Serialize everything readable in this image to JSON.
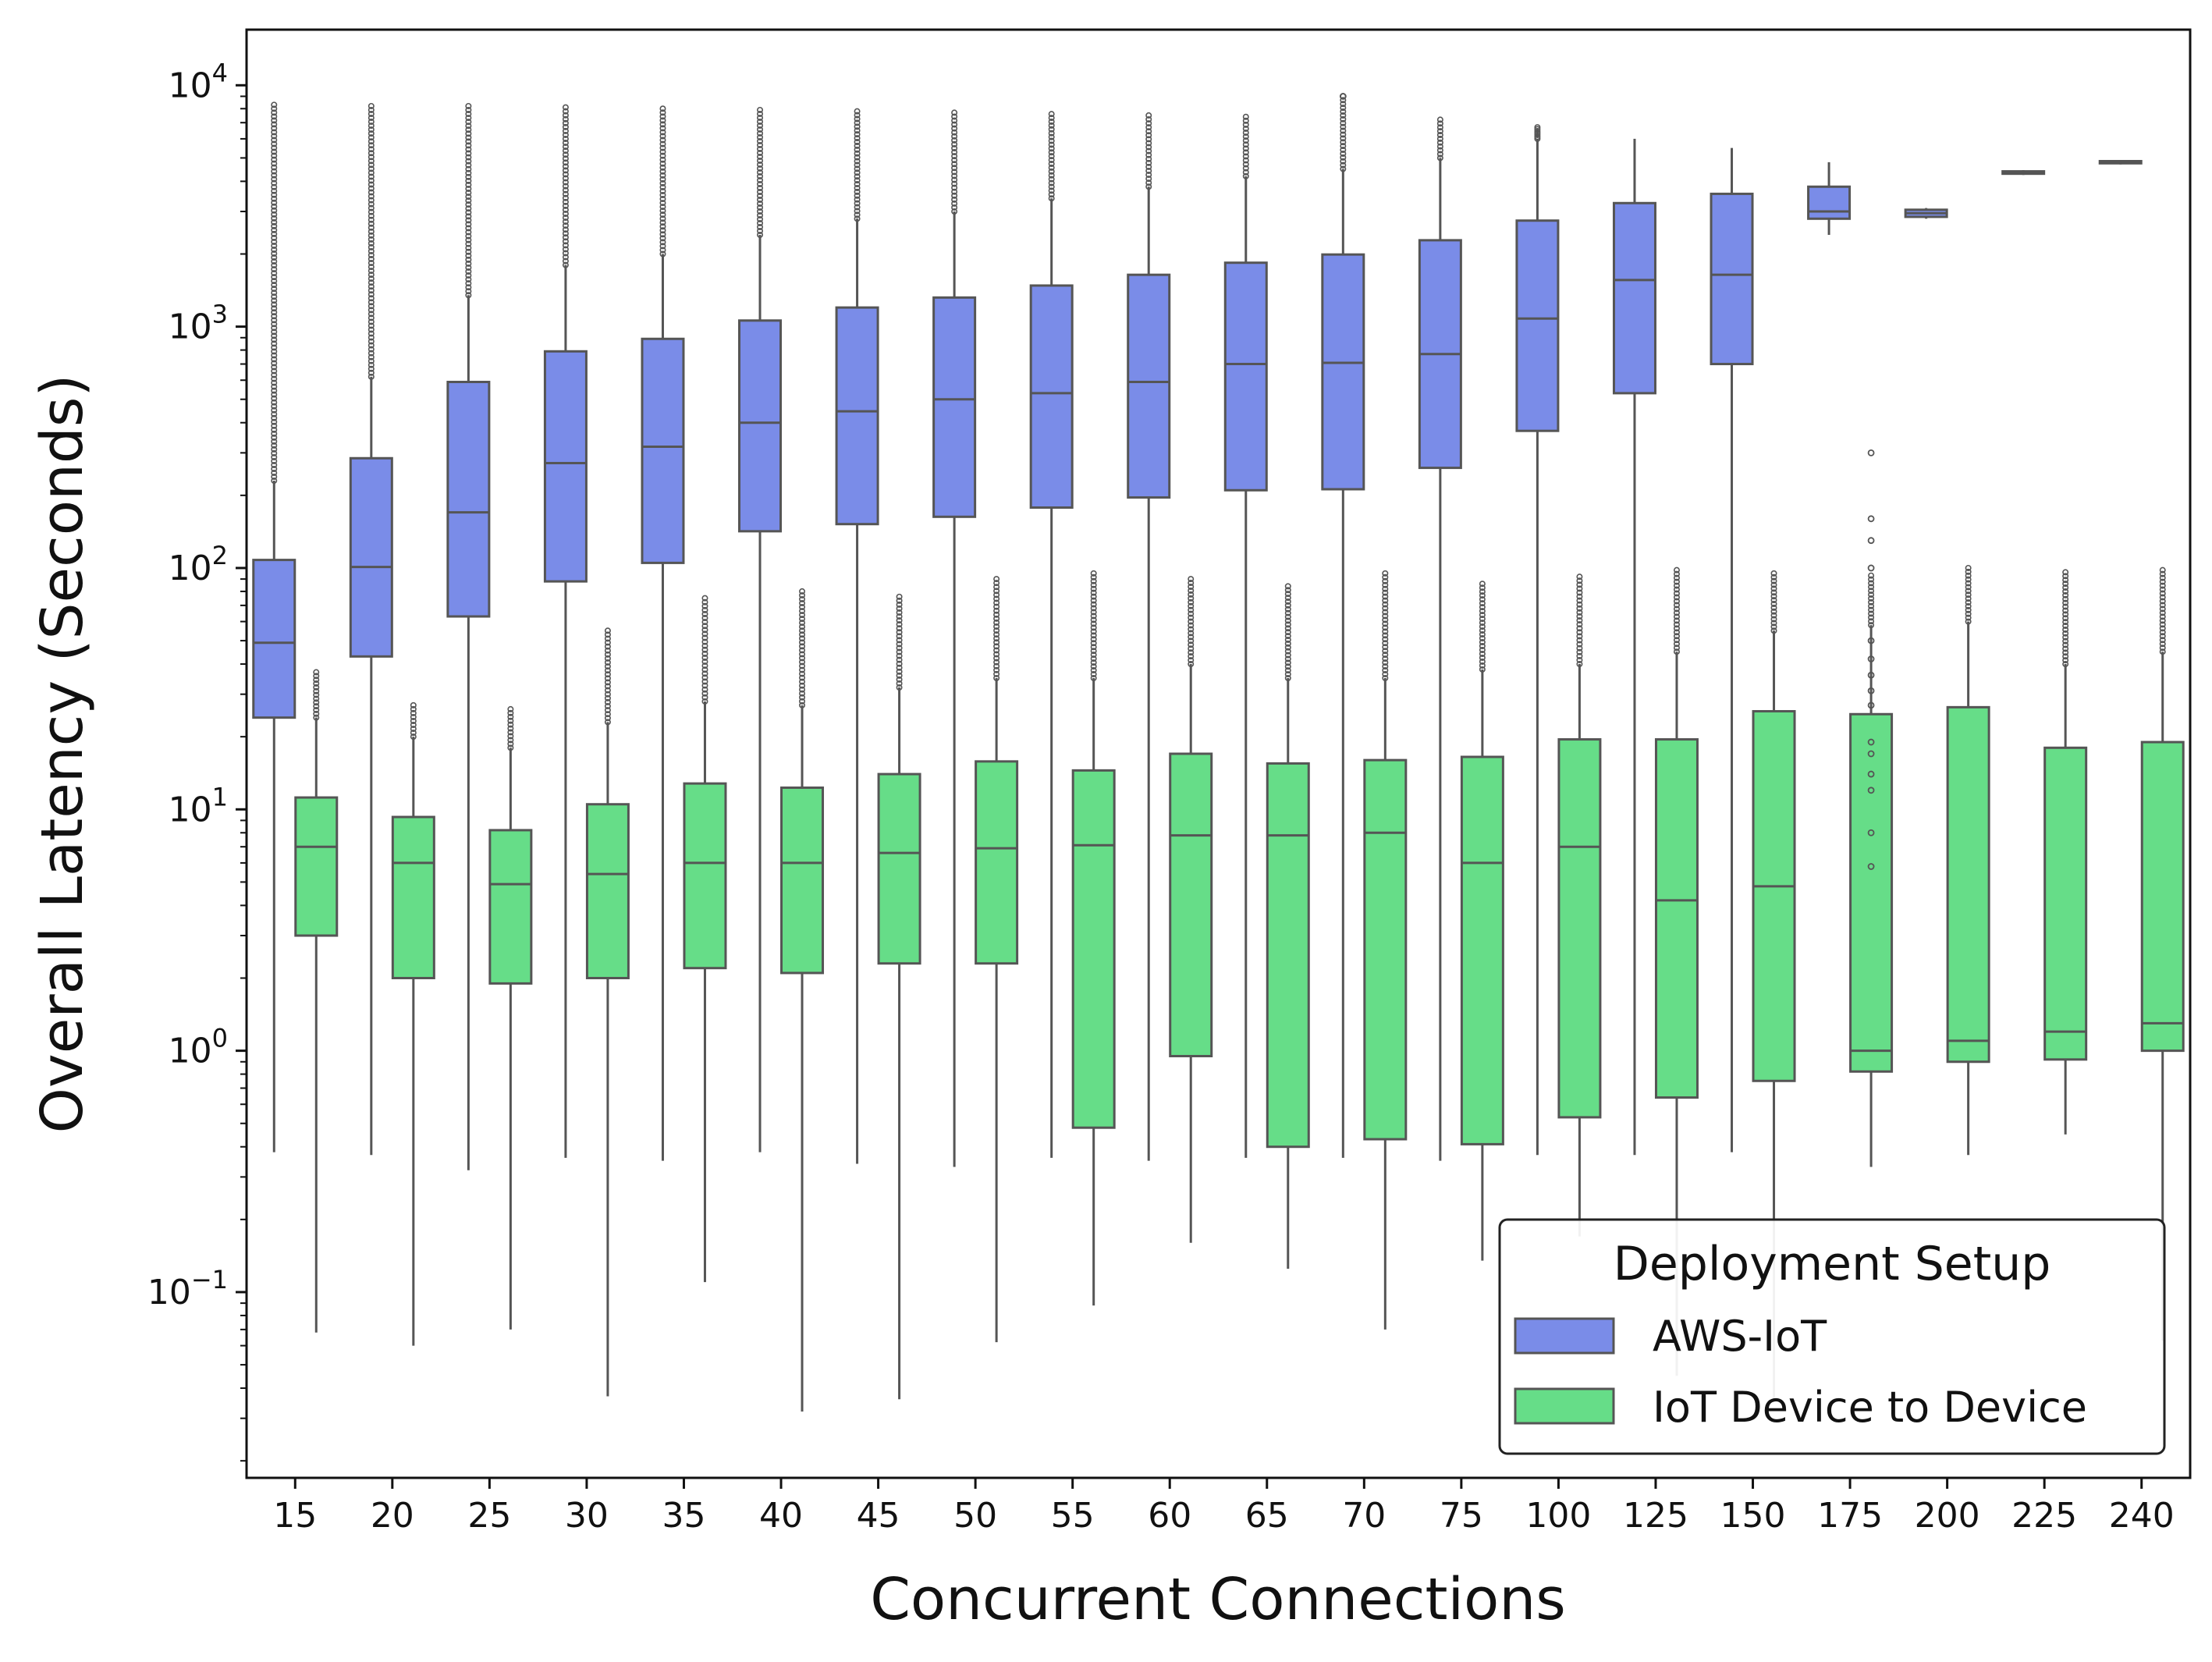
{
  "chart_data": {
    "type": "box",
    "xlabel": "Concurrent Connections",
    "ylabel": "Overall Latency (Seconds)",
    "yscale": "log",
    "ylim": [
      0.017,
      17000
    ],
    "ytick_base": "10",
    "ytick_exponents": [
      "−1",
      "0",
      "1",
      "2",
      "3",
      "4"
    ],
    "ytick_values": [
      0.1,
      1,
      10,
      100,
      1000,
      10000
    ],
    "categories": [
      "15",
      "20",
      "25",
      "30",
      "35",
      "40",
      "45",
      "50",
      "55",
      "60",
      "65",
      "70",
      "75",
      "100",
      "125",
      "150",
      "175",
      "200",
      "225",
      "240"
    ],
    "legend": {
      "title": "Deployment Setup",
      "placement": "lower right"
    },
    "series": [
      {
        "name": "AWS-IoT",
        "color": "#7a8ce8",
        "boxes": [
          {
            "whislo": 0.38,
            "q1": 24,
            "med": 49,
            "q3": 108,
            "whishi": 230,
            "flier_min": 230,
            "flier_max": 8300
          },
          {
            "whislo": 0.37,
            "q1": 43,
            "med": 101,
            "q3": 285,
            "whishi": 620,
            "flier_min": 620,
            "flier_max": 8200
          },
          {
            "whislo": 0.32,
            "q1": 63,
            "med": 170,
            "q3": 590,
            "whishi": 1350,
            "flier_min": 1350,
            "flier_max": 8200
          },
          {
            "whislo": 0.36,
            "q1": 88,
            "med": 272,
            "q3": 790,
            "whishi": 1800,
            "flier_min": 1800,
            "flier_max": 8100
          },
          {
            "whislo": 0.35,
            "q1": 105,
            "med": 318,
            "q3": 890,
            "whishi": 2000,
            "flier_min": 2000,
            "flier_max": 8000
          },
          {
            "whislo": 0.38,
            "q1": 142,
            "med": 400,
            "q3": 1060,
            "whishi": 2400,
            "flier_min": 2400,
            "flier_max": 7900
          },
          {
            "whislo": 0.34,
            "q1": 152,
            "med": 446,
            "q3": 1200,
            "whishi": 2800,
            "flier_min": 2800,
            "flier_max": 7800
          },
          {
            "whislo": 0.33,
            "q1": 163,
            "med": 500,
            "q3": 1320,
            "whishi": 3000,
            "flier_min": 3000,
            "flier_max": 7700
          },
          {
            "whislo": 0.36,
            "q1": 178,
            "med": 530,
            "q3": 1480,
            "whishi": 3400,
            "flier_min": 3400,
            "flier_max": 7600
          },
          {
            "whislo": 0.35,
            "q1": 196,
            "med": 590,
            "q3": 1640,
            "whishi": 3800,
            "flier_min": 3800,
            "flier_max": 7500
          },
          {
            "whislo": 0.36,
            "q1": 210,
            "med": 700,
            "q3": 1840,
            "whishi": 4200,
            "flier_min": 4200,
            "flier_max": 7400
          },
          {
            "whislo": 0.36,
            "q1": 212,
            "med": 708,
            "q3": 1990,
            "whishi": 4500,
            "flier_min": 4500,
            "flier_max": 9000
          },
          {
            "whislo": 0.35,
            "q1": 260,
            "med": 770,
            "q3": 2280,
            "whishi": 5000,
            "flier_min": 5000,
            "flier_max": 7200
          },
          {
            "whislo": 0.37,
            "q1": 370,
            "med": 1080,
            "q3": 2750,
            "whishi": 6000,
            "flier_min": 6000,
            "flier_max": 6700
          },
          {
            "whislo": 0.37,
            "q1": 530,
            "med": 1560,
            "q3": 3250,
            "whishi": 6000
          },
          {
            "whislo": 0.38,
            "q1": 700,
            "med": 1640,
            "q3": 3550,
            "whishi": 5500
          },
          {
            "whislo": 2400,
            "q1": 2800,
            "med": 3000,
            "q3": 3800,
            "whishi": 4800
          },
          {
            "whislo": 2800,
            "q1": 2850,
            "med": 2950,
            "q3": 3050,
            "whishi": 3100
          },
          {
            "whislo": 4250,
            "q1": 4300,
            "med": 4350,
            "q3": 4400,
            "whishi": 4450
          },
          {
            "whislo": 4700,
            "q1": 4750,
            "med": 4800,
            "q3": 4850,
            "whishi": 4900
          }
        ]
      },
      {
        "name": "IoT Device to Device",
        "color": "#66dd88",
        "boxes": [
          {
            "whislo": 0.068,
            "q1": 3.0,
            "med": 7.0,
            "q3": 11.2,
            "whishi": 24,
            "flier_min": 24,
            "flier_max": 37
          },
          {
            "whislo": 0.06,
            "q1": 2.0,
            "med": 6.0,
            "q3": 9.3,
            "whishi": 20,
            "flier_min": 20,
            "flier_max": 27
          },
          {
            "whislo": 0.07,
            "q1": 1.9,
            "med": 4.9,
            "q3": 8.2,
            "whishi": 18,
            "flier_min": 18,
            "flier_max": 26
          },
          {
            "whislo": 0.037,
            "q1": 2.0,
            "med": 5.4,
            "q3": 10.5,
            "whishi": 23,
            "flier_min": 23,
            "flier_max": 55
          },
          {
            "whislo": 0.11,
            "q1": 2.2,
            "med": 6.0,
            "q3": 12.8,
            "whishi": 28,
            "flier_min": 28,
            "flier_max": 75
          },
          {
            "whislo": 0.032,
            "q1": 2.1,
            "med": 6.0,
            "q3": 12.3,
            "whishi": 27,
            "flier_min": 27,
            "flier_max": 80
          },
          {
            "whislo": 0.036,
            "q1": 2.3,
            "med": 6.6,
            "q3": 14.0,
            "whishi": 32,
            "flier_min": 32,
            "flier_max": 76
          },
          {
            "whislo": 0.062,
            "q1": 2.3,
            "med": 6.9,
            "q3": 15.8,
            "whishi": 35,
            "flier_min": 35,
            "flier_max": 90
          },
          {
            "whislo": 0.088,
            "q1": 0.48,
            "med": 7.1,
            "q3": 14.5,
            "whishi": 35,
            "flier_min": 35,
            "flier_max": 95
          },
          {
            "whislo": 0.16,
            "q1": 0.95,
            "med": 7.8,
            "q3": 17.0,
            "whishi": 40,
            "flier_min": 40,
            "flier_max": 90
          },
          {
            "whislo": 0.125,
            "q1": 0.4,
            "med": 7.8,
            "q3": 15.5,
            "whishi": 35,
            "flier_min": 35,
            "flier_max": 84
          },
          {
            "whislo": 0.07,
            "q1": 0.43,
            "med": 8.0,
            "q3": 16.0,
            "whishi": 35,
            "flier_min": 35,
            "flier_max": 95
          },
          {
            "whislo": 0.135,
            "q1": 0.41,
            "med": 6.0,
            "q3": 16.5,
            "whishi": 38,
            "flier_min": 38,
            "flier_max": 86
          },
          {
            "whislo": 0.17,
            "q1": 0.53,
            "med": 7.0,
            "q3": 19.5,
            "whishi": 40,
            "flier_min": 40,
            "flier_max": 92
          },
          {
            "whislo": 0.045,
            "q1": 0.64,
            "med": 4.2,
            "q3": 19.5,
            "whishi": 45,
            "flier_min": 45,
            "flier_max": 98
          },
          {
            "whislo": 0.035,
            "q1": 0.75,
            "med": 4.8,
            "q3": 25.5,
            "whishi": 55,
            "flier_min": 55,
            "flier_max": 95
          },
          {
            "whislo": 0.33,
            "q1": 0.82,
            "med": 1.0,
            "q3": 24.8,
            "whishi": 58,
            "flier_min": 58,
            "flier_max": 93
          },
          {
            "whislo": 0.37,
            "q1": 0.9,
            "med": 1.1,
            "q3": 26.5,
            "whishi": 60,
            "flier_min": 60,
            "flier_max": 100
          },
          {
            "whislo": 0.45,
            "q1": 0.92,
            "med": 1.2,
            "q3": 18.0,
            "whishi": 40,
            "flier_min": 40,
            "flier_max": 96
          },
          {
            "whislo": 0.063,
            "q1": 1.0,
            "med": 1.3,
            "q3": 19.0,
            "whishi": 45,
            "flier_min": 45,
            "flier_max": 98
          }
        ]
      }
    ],
    "extra_fliers": [
      {
        "series": 0,
        "category": "70",
        "value": 9000
      },
      {
        "series": 1,
        "category": "175",
        "value": 5.8
      },
      {
        "series": 1,
        "category": "175",
        "value": 8.0
      },
      {
        "series": 1,
        "category": "175",
        "value": 12
      },
      {
        "series": 1,
        "category": "175",
        "value": 14
      },
      {
        "series": 1,
        "category": "175",
        "value": 17
      },
      {
        "series": 1,
        "category": "175",
        "value": 19
      },
      {
        "series": 1,
        "category": "175",
        "value": 27
      },
      {
        "series": 1,
        "category": "175",
        "value": 31
      },
      {
        "series": 1,
        "category": "175",
        "value": 36
      },
      {
        "series": 1,
        "category": "175",
        "value": 42
      },
      {
        "series": 1,
        "category": "175",
        "value": 50
      },
      {
        "series": 1,
        "category": "175",
        "value": 130
      },
      {
        "series": 1,
        "category": "175",
        "value": 300
      },
      {
        "series": 1,
        "category": "175",
        "value": 160
      },
      {
        "series": 1,
        "category": "175",
        "value": 100
      }
    ]
  }
}
